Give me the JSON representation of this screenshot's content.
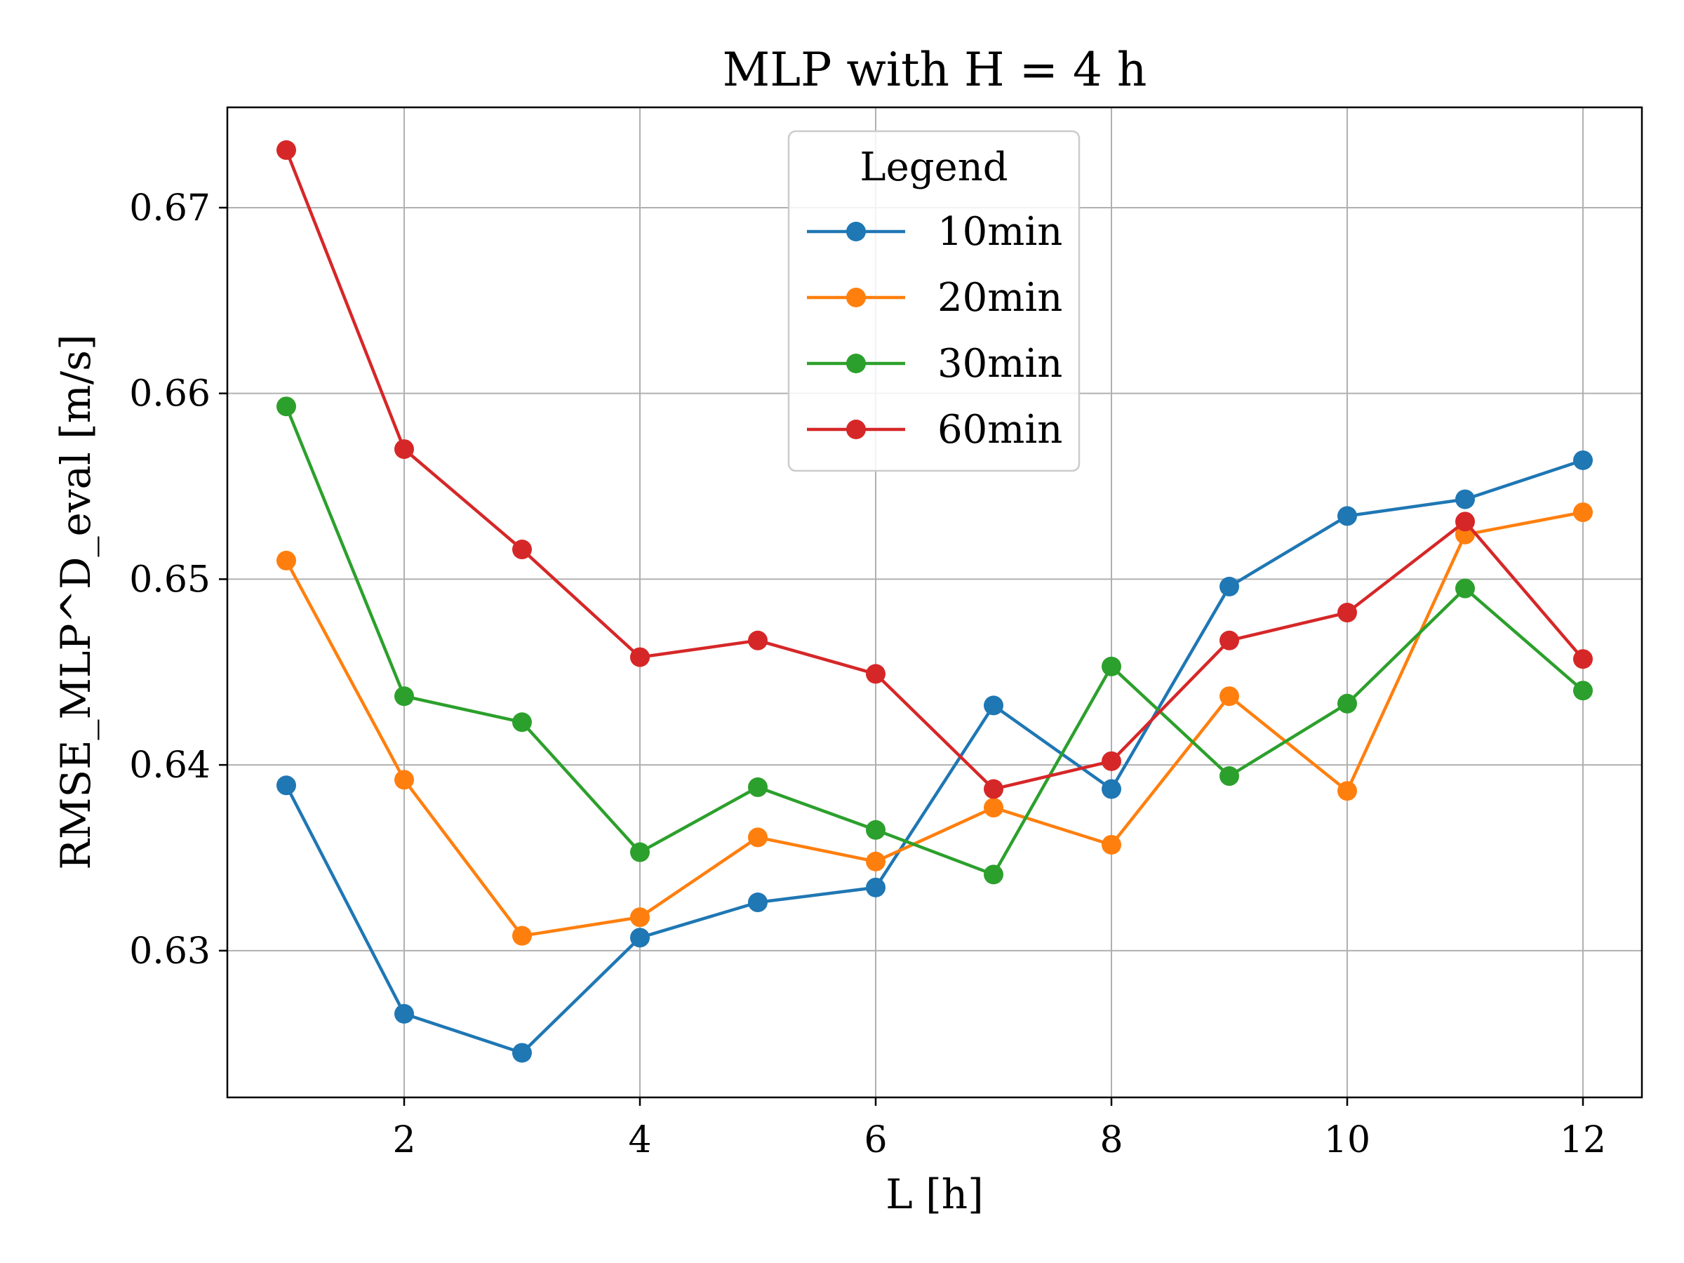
{
  "chart_data": {
    "type": "line",
    "title": "MLP with H = 4 h",
    "xlabel": "L [h]",
    "ylabel": "RMSE_MLP^D_eval [m/s]",
    "xlim": [
      0.5,
      12.5
    ],
    "ylim": [
      0.6221,
      0.6754
    ],
    "xticks": [
      2,
      4,
      6,
      8,
      10,
      12
    ],
    "xtick_labels": [
      "2",
      "4",
      "6",
      "8",
      "10",
      "12"
    ],
    "yticks": [
      0.63,
      0.64,
      0.65,
      0.66,
      0.67
    ],
    "ytick_labels": [
      "0.63",
      "0.64",
      "0.65",
      "0.66",
      "0.67"
    ],
    "grid": true,
    "legend": {
      "title": "Legend",
      "placement": "upper-center"
    },
    "x": [
      1,
      2,
      3,
      4,
      5,
      6,
      7,
      8,
      9,
      10,
      11,
      12
    ],
    "series": [
      {
        "name": "10min",
        "color": "#1f77b4",
        "values": [
          0.6389,
          0.6266,
          0.6245,
          0.6307,
          0.6326,
          0.6334,
          0.6432,
          0.6387,
          0.6496,
          0.6534,
          0.6543,
          0.6564
        ]
      },
      {
        "name": "20min",
        "color": "#ff7f0e",
        "values": [
          0.651,
          0.6392,
          0.6308,
          0.6318,
          0.6361,
          0.6348,
          0.6377,
          0.6357,
          0.6437,
          0.6386,
          0.6524,
          0.6536
        ]
      },
      {
        "name": "30min",
        "color": "#2ca02c",
        "values": [
          0.6593,
          0.6437,
          0.6423,
          0.6353,
          0.6388,
          0.6365,
          0.6341,
          0.6453,
          0.6394,
          0.6433,
          0.6495,
          0.644
        ]
      },
      {
        "name": "60min",
        "color": "#d62728",
        "values": [
          0.6731,
          0.657,
          0.6516,
          0.6458,
          0.6467,
          0.6449,
          0.6387,
          0.6402,
          0.6467,
          0.6482,
          0.6531,
          0.6457
        ]
      }
    ]
  }
}
